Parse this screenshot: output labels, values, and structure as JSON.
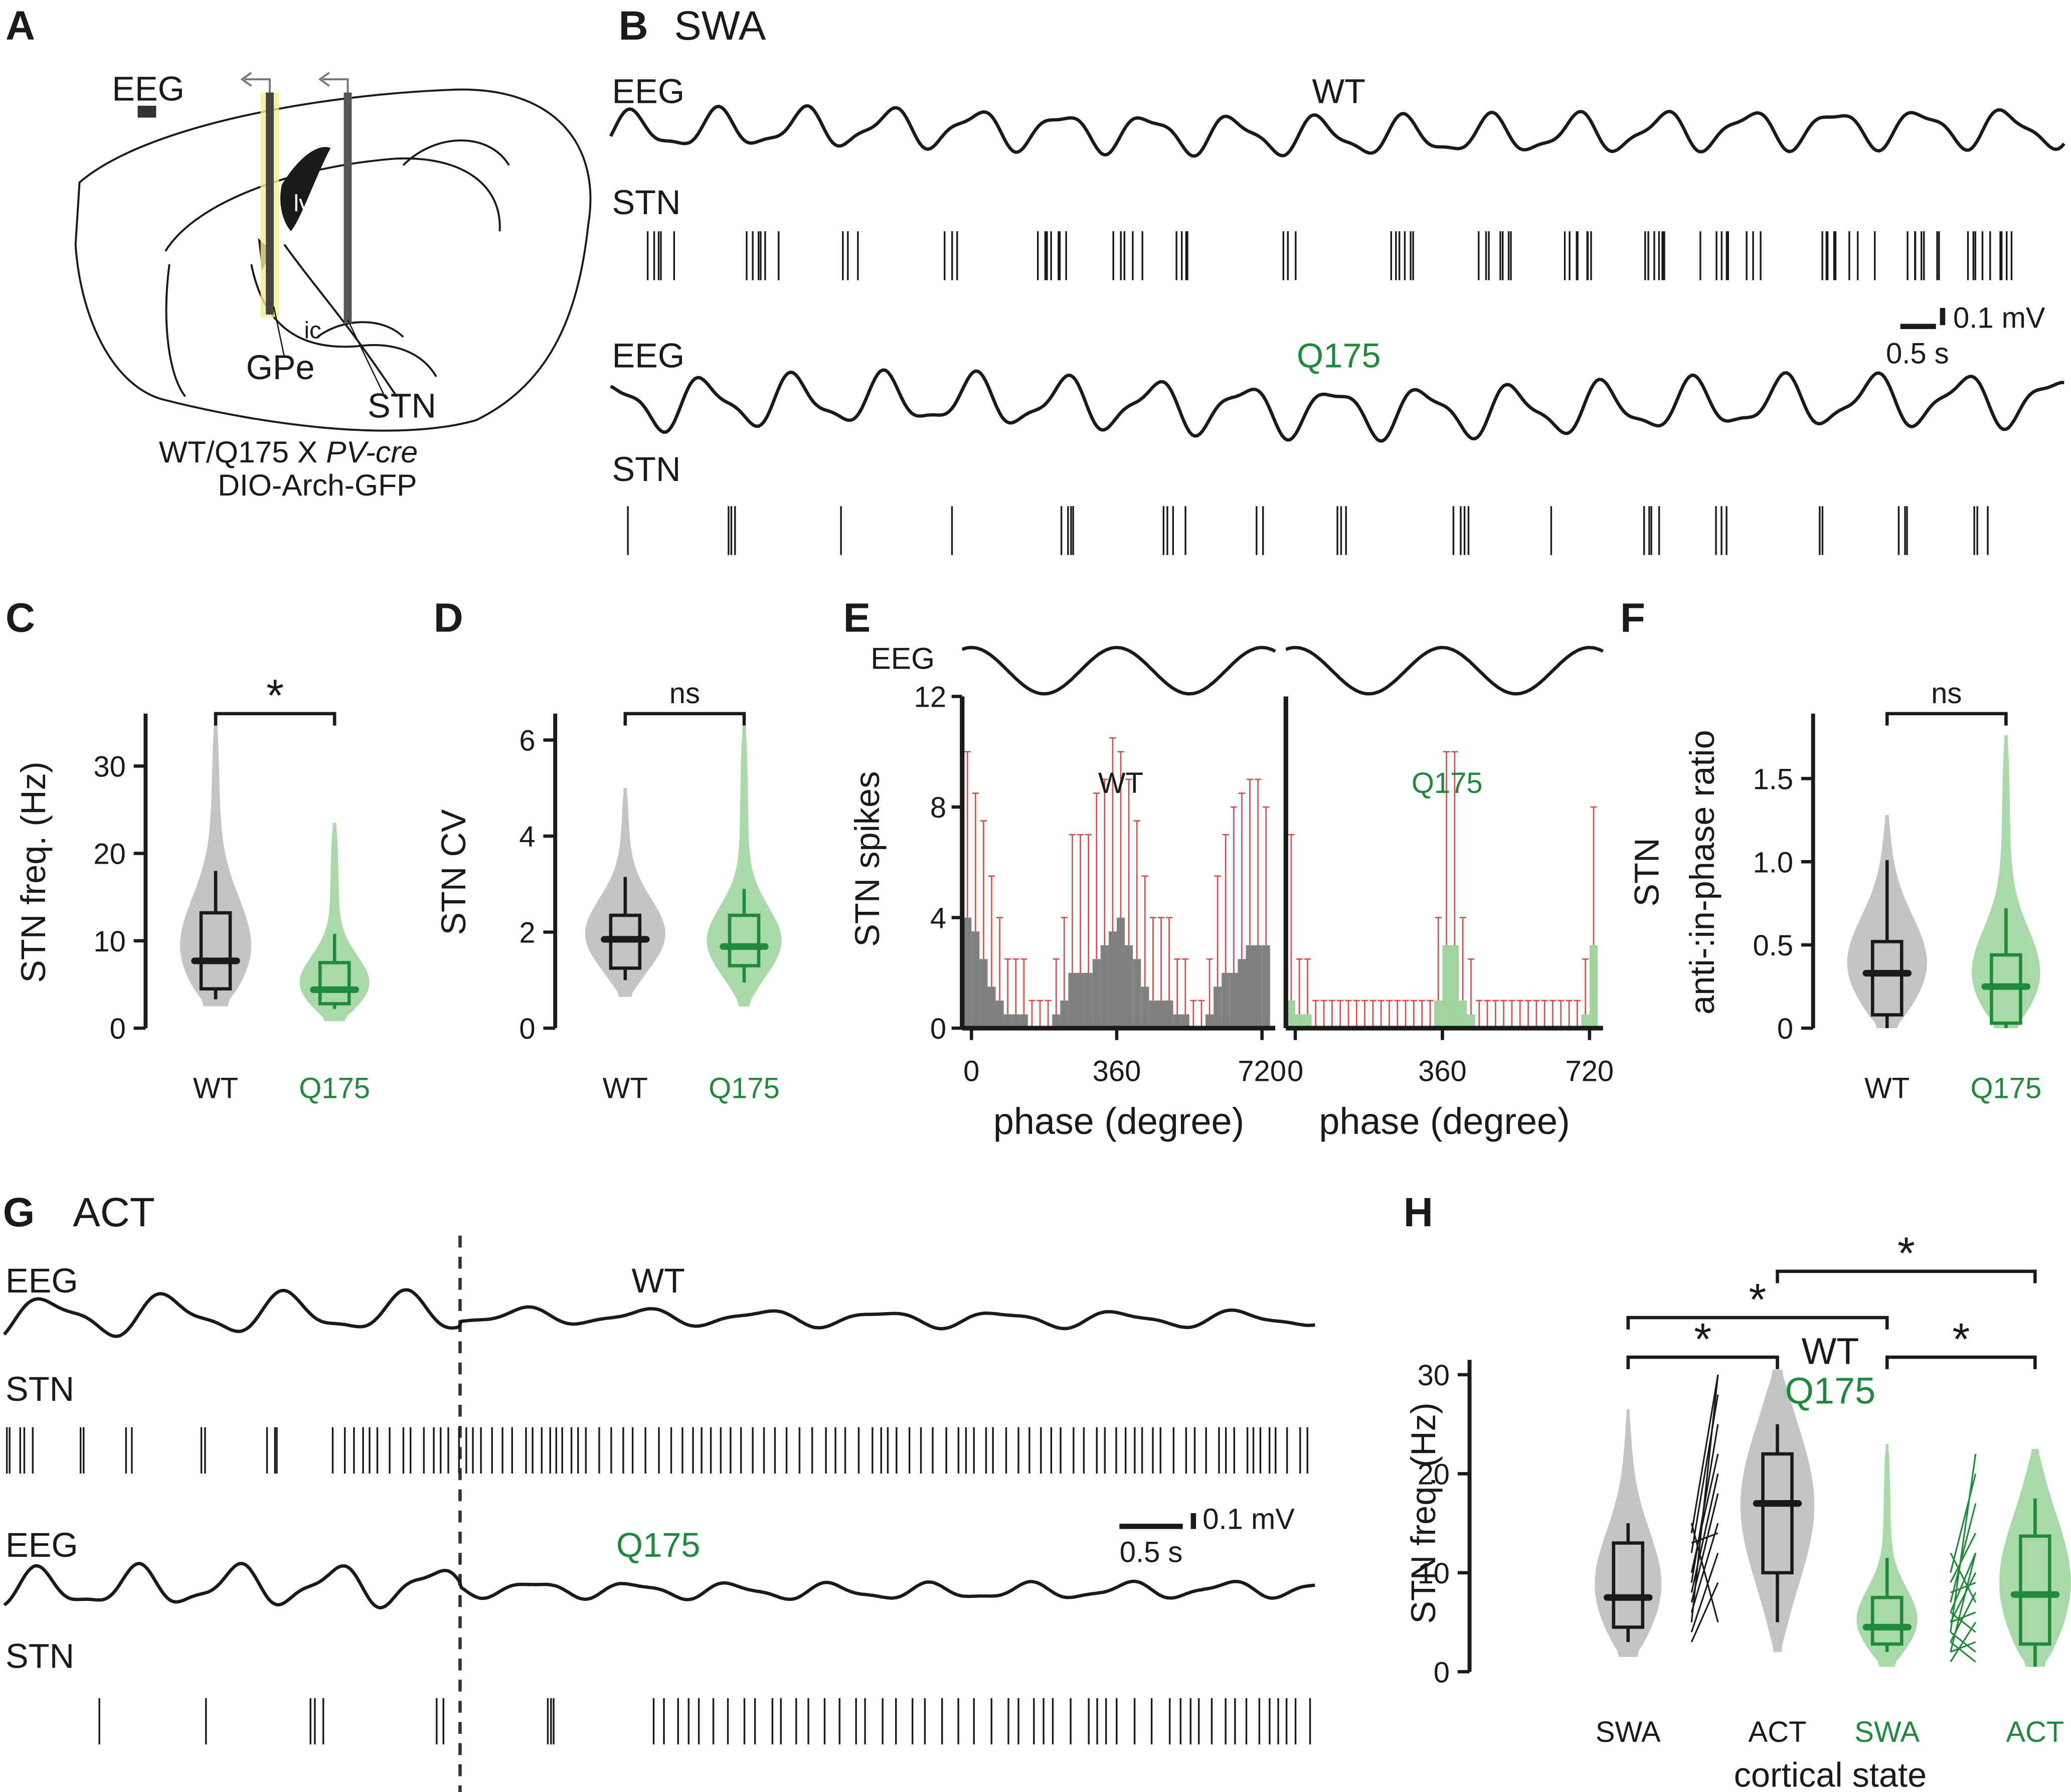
{
  "chart_data": [
    {
      "type": "diagram",
      "label": "A",
      "texts": {
        "eeg": "EEG",
        "lv": "lv",
        "ic": "ic",
        "gpe": "GPe",
        "stn": "STN",
        "cross": "WT/Q175 X ",
        "cre": "PV-cre",
        "virus": "DIO-Arch-GFP"
      }
    },
    {
      "type": "traces",
      "label": "B",
      "title": "SWA",
      "rows": [
        {
          "signal": "EEG",
          "name": "WT",
          "color": "#1a1a1a",
          "units": "STN"
        },
        {
          "signal": "EEG",
          "name": "Q175",
          "color": "#1f8a3c",
          "units": "STN"
        }
      ],
      "scale": {
        "time": "0.5 s",
        "voltage": "0.1 mV"
      }
    },
    {
      "type": "violin",
      "label": "C",
      "ylabel": "STN freq. (Hz)",
      "ylim": [
        0,
        36
      ],
      "yticks": [
        0,
        10,
        20,
        30
      ],
      "groups": [
        {
          "name": "WT",
          "color": "#1a1a1a",
          "fill": "#c4c4c4",
          "whisker_low": 3.3,
          "q1": 4.5,
          "median": 7.7,
          "q3": 13.2,
          "whisker_high": 18,
          "violin_min": 2.5,
          "violin_max": 35
        },
        {
          "name": "Q175",
          "color": "#1f8a3c",
          "fill": "#a9d9a9",
          "whisker_low": 2.2,
          "q1": 2.8,
          "median": 4.4,
          "q3": 7.5,
          "whisker_high": 10.8,
          "violin_min": 0.8,
          "violin_max": 23.5
        }
      ],
      "comparisons": [
        {
          "groups": [
            0,
            1
          ],
          "label": "*"
        }
      ]
    },
    {
      "type": "violin",
      "label": "D",
      "ylabel": "STN CV",
      "ylim": [
        0,
        6.55
      ],
      "yticks": [
        0,
        2,
        4,
        6
      ],
      "groups": [
        {
          "name": "WT",
          "color": "#1a1a1a",
          "fill": "#c4c4c4",
          "whisker_low": 1.0,
          "q1": 1.25,
          "median": 1.85,
          "q3": 2.35,
          "whisker_high": 3.15,
          "violin_min": 0.65,
          "violin_max": 5.0
        },
        {
          "name": "Q175",
          "color": "#1f8a3c",
          "fill": "#a9d9a9",
          "whisker_low": 0.95,
          "q1": 1.3,
          "median": 1.7,
          "q3": 2.35,
          "whisker_high": 2.9,
          "violin_min": 0.45,
          "violin_max": 6.3
        }
      ],
      "comparisons": [
        {
          "groups": [
            0,
            1
          ],
          "label": "ns"
        }
      ]
    },
    {
      "type": "histogram",
      "label": "E",
      "trace_label": "EEG",
      "ylabel": "STN spikes",
      "xlabel": "phase (degree)",
      "bins": [
        -20,
        0,
        20,
        40,
        60,
        80,
        100,
        120,
        140,
        160,
        180,
        200,
        220,
        240,
        260,
        280,
        300,
        320,
        340,
        360,
        380,
        400,
        420,
        440,
        460,
        480,
        500,
        520,
        540,
        560,
        580,
        600,
        620,
        640,
        660,
        680,
        700,
        720,
        740
      ],
      "xlim": [
        -23,
        753
      ],
      "xticks": [
        0,
        360,
        720
      ],
      "ylim": [
        0,
        12
      ],
      "yticks": [
        0,
        4,
        8,
        12
      ],
      "error_color": "#e04646",
      "series": [
        {
          "name": "WT",
          "color": "#1a1a1a",
          "fill": "#808080",
          "values": [
            4,
            3.5,
            2.5,
            1.5,
            1,
            0.5,
            0.5,
            0.5,
            0,
            0,
            0,
            0.5,
            1,
            2,
            2,
            2,
            2.5,
            3,
            3.5,
            4,
            3,
            2.5,
            1.5,
            1,
            1,
            1,
            0.5,
            0.5,
            0,
            0,
            0.5,
            1.5,
            2,
            2,
            2.5,
            3,
            3,
            3
          ],
          "errors": [
            6,
            5,
            5,
            4,
            3,
            2,
            2,
            2,
            1,
            1,
            1,
            2,
            3,
            5,
            5,
            5,
            6,
            6,
            7,
            6,
            6,
            5,
            4,
            3,
            3,
            3,
            2,
            2,
            1,
            1,
            2,
            4,
            5,
            6,
            6,
            6,
            6,
            5
          ]
        },
        {
          "name": "Q175",
          "color": "#1f8a3c",
          "fill": "#9fd49f",
          "values": [
            1,
            0.5,
            0.5,
            0,
            0,
            0,
            0,
            0,
            0,
            0,
            0,
            0,
            0,
            0,
            0,
            0,
            0,
            0,
            1,
            3,
            3,
            1,
            0.5,
            0,
            0,
            0,
            0,
            0,
            0,
            0,
            0,
            0,
            0,
            0,
            0,
            0,
            0.5,
            3
          ],
          "errors": [
            6,
            2,
            2,
            1,
            1,
            1,
            1,
            1,
            1,
            1,
            1,
            1,
            1,
            1,
            1,
            1,
            1,
            1,
            3,
            7,
            7,
            3,
            2,
            1,
            1,
            1,
            1,
            1,
            1,
            1,
            1,
            1,
            1,
            1,
            1,
            1,
            2,
            5
          ]
        }
      ]
    },
    {
      "type": "violin",
      "label": "F",
      "ylabel": [
        "STN",
        "anti-:in-phase ratio"
      ],
      "ylim": [
        0,
        1.89
      ],
      "yticks": [
        0,
        0.5,
        {
          "value": 1,
          "label": "1.0"
        },
        1.5
      ],
      "groups": [
        {
          "name": "WT",
          "color": "#1a1a1a",
          "fill": "#c4c4c4",
          "whisker_low": 0,
          "q1": 0.08,
          "median": 0.33,
          "q3": 0.52,
          "whisker_high": 1.01,
          "violin_min": 0,
          "violin_max": 1.28
        },
        {
          "name": "Q175",
          "color": "#1f8a3c",
          "fill": "#a9d9a9",
          "whisker_low": 0,
          "q1": 0.03,
          "median": 0.25,
          "q3": 0.44,
          "whisker_high": 0.72,
          "violin_min": 0,
          "violin_max": 1.76
        }
      ],
      "comparisons": [
        {
          "groups": [
            0,
            1
          ],
          "label": "ns"
        }
      ]
    },
    {
      "type": "traces",
      "label": "G",
      "title": "ACT",
      "rows": [
        {
          "signal": "EEG",
          "name": "WT",
          "color": "#1a1a1a",
          "units": "STN"
        },
        {
          "signal": "EEG",
          "name": "Q175",
          "color": "#1f8a3c",
          "units": "STN"
        }
      ],
      "scale": {
        "time": "0.5 s",
        "voltage": "0.1 mV"
      }
    },
    {
      "type": "violin",
      "label": "H",
      "ylabel": "STN freq. (Hz)",
      "xlabel": "cortical state",
      "ylim": [
        0,
        31.5
      ],
      "yticks": [
        0,
        10,
        20,
        30
      ],
      "legend": [
        {
          "name": "WT",
          "color": "#1a1a1a"
        },
        {
          "name": "Q175",
          "color": "#1f8a3c"
        }
      ],
      "groups": [
        {
          "name": "SWA",
          "color": "#1a1a1a",
          "fill": "#c4c4c4",
          "whisker_low": 3,
          "q1": 4.5,
          "median": 7.5,
          "q3": 13,
          "whisker_high": 15,
          "violin_min": 1.5,
          "violin_max": 26.5
        },
        {
          "name": "ACT",
          "color": "#1a1a1a",
          "fill": "#c4c4c4",
          "whisker_low": 5,
          "q1": 10,
          "median": 17,
          "q3": 22,
          "whisker_high": 25,
          "violin_min": 2,
          "violin_max": 30.5
        },
        {
          "name": "SWA",
          "color": "#1f8a3c",
          "fill": "#a9d9a9",
          "whisker_low": 2,
          "q1": 2.8,
          "median": 4.5,
          "q3": 7.5,
          "whisker_high": 11.5,
          "violin_min": 0.5,
          "violin_max": 23
        },
        {
          "name": "ACT",
          "color": "#1f8a3c",
          "fill": "#a9d9a9",
          "whisker_low": 0.5,
          "q1": 2.8,
          "median": 7.8,
          "q3": 13.7,
          "whisker_high": 17.5,
          "violin_min": 0.5,
          "violin_max": 22.5
        }
      ],
      "pairs": [
        {
          "groups": [
            0,
            1
          ],
          "color": "#1a1a1a",
          "from": [
            3,
            4,
            5,
            6,
            7,
            8,
            9,
            10,
            12,
            13,
            15,
            14
          ],
          "to": [
            9,
            12,
            30,
            15,
            18,
            20,
            25,
            22,
            28,
            14,
            5,
            30
          ]
        },
        {
          "groups": [
            2,
            3
          ],
          "color": "#1f8a3c",
          "from": [
            1,
            2,
            2,
            3,
            4,
            4,
            5,
            5,
            6,
            7,
            8,
            9,
            10,
            12,
            3,
            6
          ],
          "to": [
            5,
            3,
            12,
            8,
            2,
            22,
            6,
            10,
            4,
            17,
            9,
            14,
            20,
            7,
            1,
            12
          ]
        }
      ],
      "comparisons": [
        {
          "groups": [
            0,
            1
          ],
          "label": "*"
        },
        {
          "groups": [
            0,
            2
          ],
          "label": "*"
        },
        {
          "groups": [
            1,
            3
          ],
          "label": "*"
        },
        {
          "groups": [
            2,
            3
          ],
          "label": "*"
        }
      ]
    }
  ]
}
